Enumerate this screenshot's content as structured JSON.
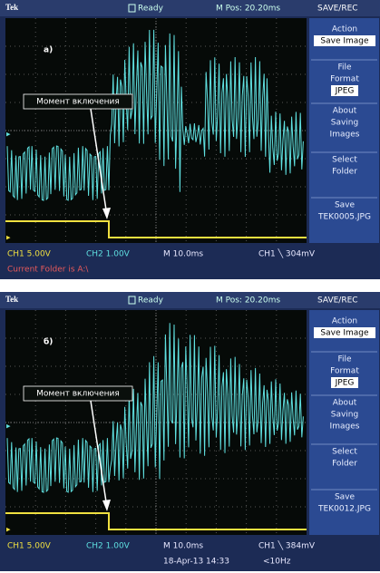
{
  "panels": [
    {
      "label": "а)",
      "header": {
        "brand": "Tek",
        "status": "Ready",
        "position": "M Pos: 20.20ms",
        "mode": "SAVE/REC"
      },
      "menu": [
        [
          "Action",
          "Save Image"
        ],
        [
          "File",
          "Format",
          "JPEG"
        ],
        [
          "About",
          "Saving",
          "Images"
        ],
        [
          "Select",
          "Folder"
        ],
        [
          "Save",
          "TEK0005.JPG"
        ]
      ],
      "annotation": "Момент включения",
      "footer": {
        "ch1": "CH1  5.00V",
        "ch2": "CH2  1.00V",
        "timebase": "M 10.0ms",
        "trigger": "CH1 ╲ 304mV",
        "folder": "Current Folder is A:\\"
      }
    },
    {
      "label": "б)",
      "header": {
        "brand": "Tek",
        "status": "Ready",
        "position": "M Pos: 20.20ms",
        "mode": "SAVE/REC"
      },
      "menu": [
        [
          "Action",
          "Save Image"
        ],
        [
          "File",
          "Format",
          "JPEG"
        ],
        [
          "About",
          "Saving",
          "Images"
        ],
        [
          "Select",
          "Folder"
        ],
        [
          "Save",
          "TEK0012.JPG"
        ]
      ],
      "annotation": "Момент включения",
      "footer": {
        "ch1": "CH1  5.00V",
        "ch2": "CH2  1.00V",
        "timebase": "M 10.0ms",
        "trigger": "CH1 ╲ 384mV",
        "date": "18-Apr-13 14:33",
        "frequency": "<10Hz"
      }
    }
  ]
}
